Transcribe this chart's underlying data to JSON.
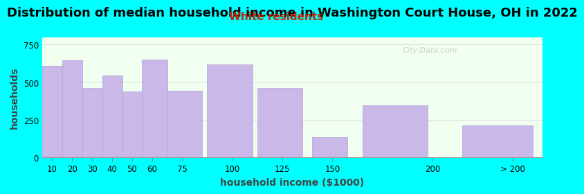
{
  "title": "Distribution of median household income in Washington Court House, OH in 2022",
  "subtitle": "White residents",
  "xlabel": "household income ($1000)",
  "ylabel": "households",
  "bar_labels": [
    "10",
    "20",
    "30",
    "40",
    "50",
    "60",
    "75",
    "100",
    "125",
    "150",
    "200",
    "> 200"
  ],
  "bar_values": [
    610,
    645,
    460,
    545,
    440,
    650,
    445,
    620,
    460,
    135,
    345,
    210
  ],
  "bar_left_edges": [
    5,
    15,
    25,
    35,
    45,
    55,
    67.5,
    87.5,
    112.5,
    140,
    165,
    215
  ],
  "bar_widths": [
    10,
    10,
    10,
    10,
    10,
    12.5,
    17.5,
    22.5,
    22.5,
    17.5,
    32.5,
    35
  ],
  "bar_color": "#c9b8e8",
  "bar_edge_color": "#b8a0d8",
  "background_outer": "#00ffff",
  "background_plot_left": "#f0fff0",
  "background_plot_right": "#f0f0ff",
  "yticks": [
    0,
    250,
    500,
    750
  ],
  "ylim": [
    0,
    800
  ],
  "xlim": [
    5,
    255
  ],
  "xtick_positions": [
    10,
    20,
    30,
    40,
    50,
    60,
    75,
    100,
    125,
    150,
    200
  ],
  "xtick_last_pos": 240,
  "title_fontsize": 13,
  "subtitle_fontsize": 11,
  "subtitle_color": "#cc2200",
  "axis_label_fontsize": 10,
  "tick_fontsize": 8.5,
  "watermark": "City-Data.com"
}
